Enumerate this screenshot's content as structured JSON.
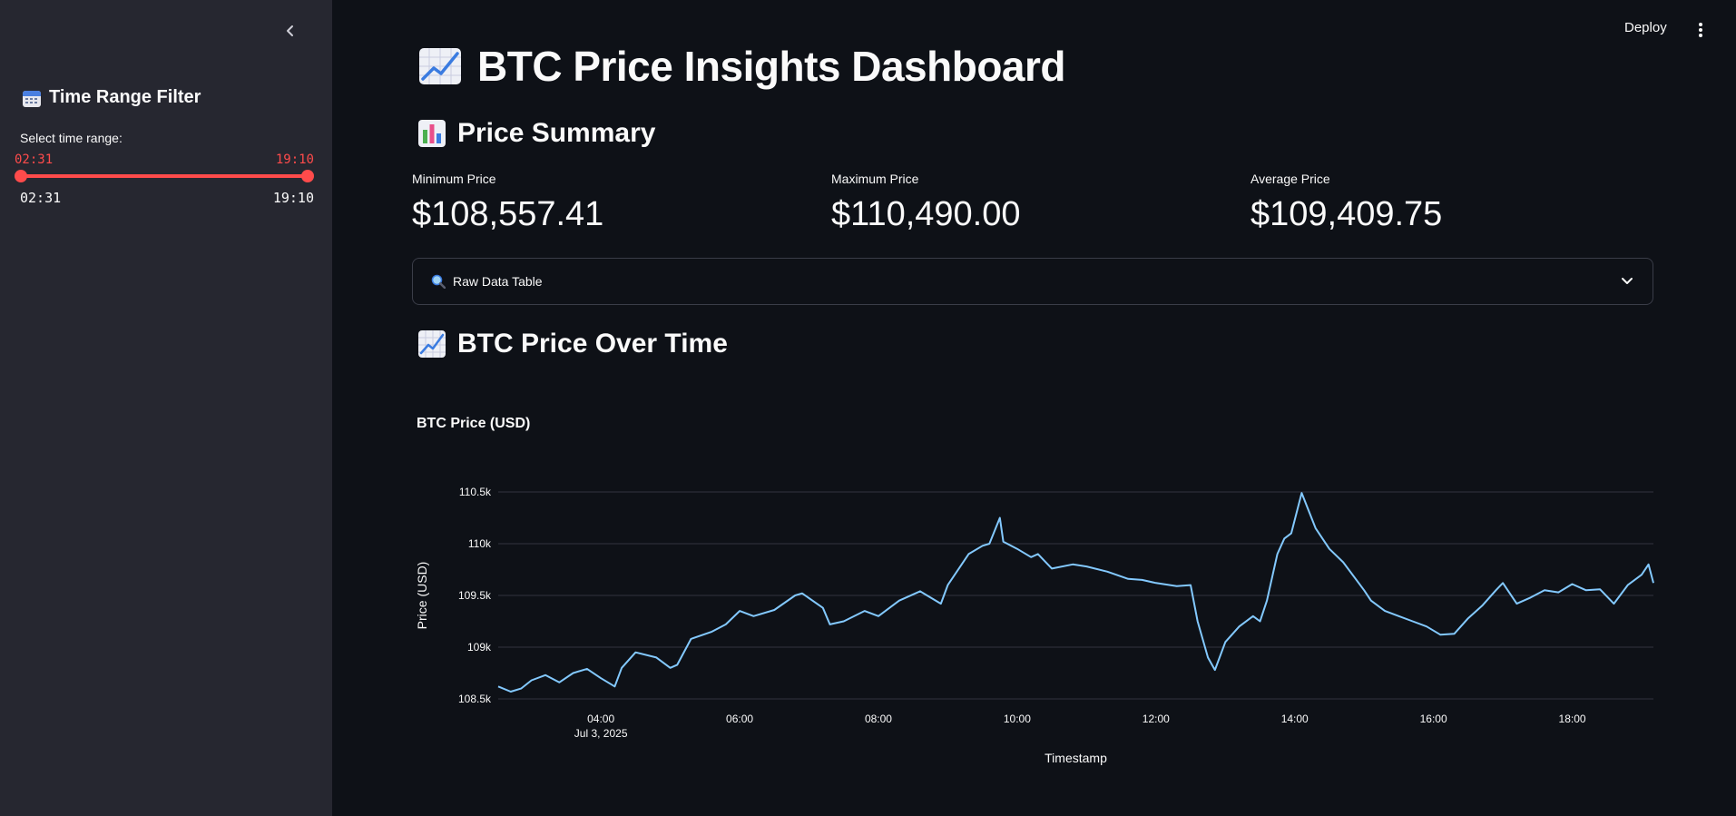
{
  "sidebar": {
    "heading": "Time Range Filter",
    "heading_icon": "calendar-icon",
    "slider_label": "Select time range:",
    "range_start": "02:31",
    "range_end": "19:10",
    "min_label": "02:31",
    "max_label": "19:10",
    "accent_color": "#ff4b4b"
  },
  "header": {
    "deploy_label": "Deploy"
  },
  "main": {
    "title": "BTC Price Insights Dashboard",
    "title_icon": "chart-increasing-icon",
    "summary_heading": "Price Summary",
    "summary_icon": "bar-chart-icon",
    "metrics": [
      {
        "label": "Minimum Price",
        "value": "$108,557.41"
      },
      {
        "label": "Maximum Price",
        "value": "$110,490.00"
      },
      {
        "label": "Average Price",
        "value": "$109,409.75"
      }
    ],
    "expander_label": "Raw Data Table",
    "expander_icon": "magnifier-icon",
    "chart_heading": "BTC Price Over Time",
    "chart_heading_icon": "chart-increasing-icon"
  },
  "chart_data": {
    "type": "line",
    "title": "BTC Price (USD)",
    "xlabel": "Timestamp",
    "ylabel": "Price (USD)",
    "x_ticks": [
      "04:00",
      "06:00",
      "08:00",
      "10:00",
      "12:00",
      "14:00",
      "16:00",
      "18:00"
    ],
    "x_tick_sublabel": "Jul 3, 2025",
    "y_ticks": [
      "108.5k",
      "109k",
      "109.5k",
      "110k",
      "110.5k"
    ],
    "y_tick_values": [
      108500,
      109000,
      109500,
      110000,
      110500
    ],
    "xlim": [
      2.52,
      19.17
    ],
    "ylim": [
      108500,
      110500
    ],
    "grid": true,
    "line_color": "#83c9ff",
    "series": [
      {
        "x": [
          2.52,
          2.7,
          2.85,
          3.0,
          3.2,
          3.4,
          3.6,
          3.8,
          4.0,
          4.2,
          4.3,
          4.5,
          4.8,
          5.0,
          5.1,
          5.3,
          5.6,
          5.8,
          6.0,
          6.2,
          6.5,
          6.8,
          6.9,
          7.2,
          7.3,
          7.5,
          7.8,
          8.0,
          8.3,
          8.6,
          8.9,
          9.0,
          9.3,
          9.5,
          9.6,
          9.75,
          9.8,
          10.0,
          10.2,
          10.3,
          10.5,
          10.8,
          11.0,
          11.3,
          11.6,
          11.8,
          12.0,
          12.3,
          12.5,
          12.6,
          12.75,
          12.85,
          13.0,
          13.2,
          13.4,
          13.5,
          13.6,
          13.75,
          13.85,
          13.95,
          14.1,
          14.3,
          14.5,
          14.7,
          15.0,
          15.1,
          15.3,
          15.5,
          15.7,
          15.9,
          16.1,
          16.3,
          16.5,
          16.7,
          16.9,
          17.0,
          17.2,
          17.4,
          17.6,
          17.8,
          18.0,
          18.2,
          18.4,
          18.6,
          18.8,
          19.0,
          19.1,
          19.17
        ],
        "y": [
          108620,
          108570,
          108600,
          108680,
          108730,
          108660,
          108750,
          108790,
          108700,
          108620,
          108800,
          108950,
          108900,
          108800,
          108830,
          109080,
          109150,
          109220,
          109350,
          109300,
          109360,
          109500,
          109520,
          109380,
          109220,
          109250,
          109350,
          109300,
          109450,
          109540,
          109420,
          109600,
          109900,
          109980,
          110000,
          110250,
          110020,
          109950,
          109870,
          109900,
          109760,
          109800,
          109780,
          109730,
          109660,
          109650,
          109620,
          109590,
          109600,
          109250,
          108900,
          108780,
          109050,
          109200,
          109300,
          109250,
          109450,
          109900,
          110050,
          110100,
          110490,
          110150,
          109950,
          109820,
          109550,
          109450,
          109350,
          109300,
          109250,
          109200,
          109120,
          109130,
          109280,
          109400,
          109550,
          109620,
          109420,
          109480,
          109550,
          109530,
          109610,
          109550,
          109560,
          109420,
          109600,
          109700,
          109800,
          109620
        ]
      }
    ]
  }
}
